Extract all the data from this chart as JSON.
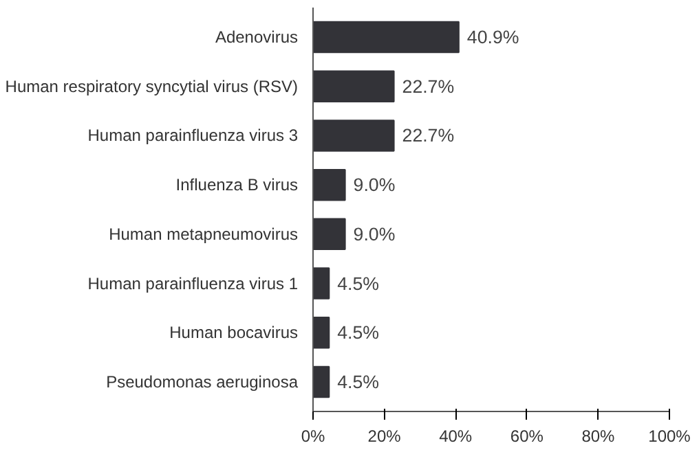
{
  "chart_data": {
    "type": "bar",
    "orientation": "horizontal",
    "categories": [
      "Adenovirus",
      "Human respiratory syncytial virus (RSV)",
      "Human parainfluenza virus 3",
      "Influenza B virus",
      "Human metapneumovirus",
      "Human parainfluenza virus 1",
      "Human bocavirus",
      "Pseudomonas aeruginosa"
    ],
    "values": [
      40.9,
      22.7,
      22.7,
      9.0,
      9.0,
      4.5,
      4.5,
      4.5
    ],
    "value_labels": [
      "40.9%",
      "22.7%",
      "22.7%",
      "9.0%",
      "9.0%",
      "4.5%",
      "4.5%",
      "4.5%"
    ],
    "color": "#333338",
    "xlim": [
      0,
      100
    ],
    "xticks": [
      {
        "value": 0,
        "label": "0%"
      },
      {
        "value": 20,
        "label": "20%"
      },
      {
        "value": 40,
        "label": "40%"
      },
      {
        "value": 60,
        "label": "60%"
      },
      {
        "value": 80,
        "label": "80%"
      },
      {
        "value": 100,
        "label": "100%"
      }
    ],
    "grid": false
  }
}
